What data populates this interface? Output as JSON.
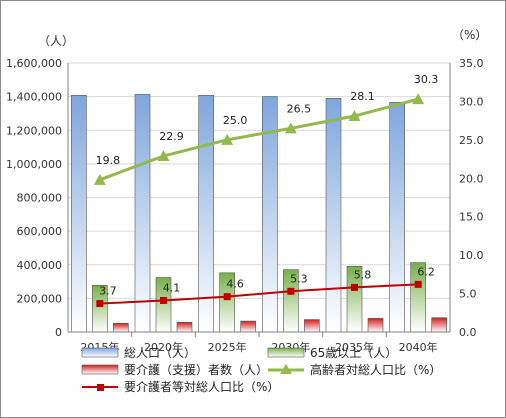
{
  "chart_data": {
    "type": "bar",
    "categories": [
      "2015年",
      "2020年",
      "2025年",
      "2030年",
      "2035年",
      "2040年"
    ],
    "left_axis": {
      "unit_label": "（人）",
      "ylim": [
        0,
        1600000
      ],
      "ticks": [
        "0",
        "200,000",
        "400,000",
        "600,000",
        "800,000",
        "1,000,000",
        "1,200,000",
        "1,400,000",
        "1,600,000"
      ]
    },
    "right_axis": {
      "unit_label": "（%）",
      "ylim": [
        0,
        35
      ],
      "ticks": [
        "0.0",
        "5.0",
        "10.0",
        "15.0",
        "20.0",
        "25.0",
        "30.0",
        "35.0"
      ]
    },
    "series": [
      {
        "name": "総人口（人）",
        "type": "bar",
        "axis": "left",
        "color": "#7fa6dc",
        "values": [
          1408000,
          1413000,
          1408000,
          1400000,
          1390000,
          1366000
        ]
      },
      {
        "name": "65歳以上（人）",
        "type": "bar",
        "axis": "left",
        "color": "#77b04a",
        "values": [
          278000,
          324000,
          352000,
          371000,
          391000,
          413000
        ]
      },
      {
        "name": "要介護（支援）者数（人）",
        "type": "bar",
        "axis": "left",
        "color": "#d02020",
        "values": [
          52000,
          58000,
          65000,
          74000,
          81000,
          85000
        ]
      },
      {
        "name": "高齢者対総人口比（%）",
        "type": "line",
        "axis": "right",
        "color": "#92b84e",
        "marker": "triangle",
        "values": [
          19.8,
          22.9,
          25.0,
          26.5,
          28.1,
          30.3
        ],
        "labels": [
          "19.8",
          "22.9",
          "25.0",
          "26.5",
          "28.1",
          "30.3"
        ]
      },
      {
        "name": "要介護者等対総人口比（%）",
        "type": "line",
        "axis": "right",
        "color": "#c00000",
        "marker": "square",
        "values": [
          3.7,
          4.1,
          4.6,
          5.3,
          5.8,
          6.2
        ],
        "labels": [
          "3.7",
          "4.1",
          "4.6",
          "5.3",
          "5.8",
          "6.2"
        ]
      }
    ],
    "grid": true,
    "legend_position": "bottom"
  }
}
